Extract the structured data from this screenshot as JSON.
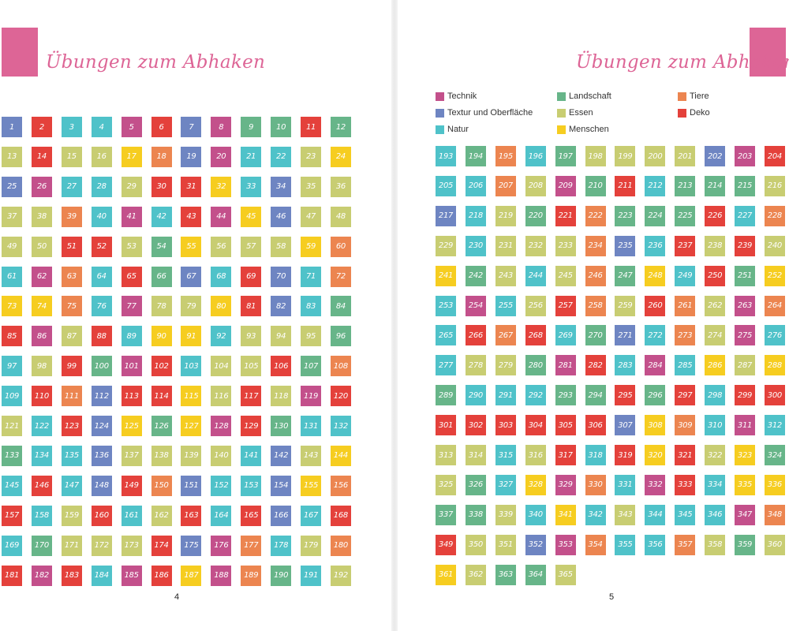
{
  "colors": {
    "Technik": "#c3508b",
    "Textur": "#6e85c2",
    "Natur": "#4fc2c9",
    "Landschaft": "#67b589",
    "Essen": "#c8cd72",
    "Menschen": "#f6cd20",
    "Tiere": "#ec8550",
    "Deko": "#e4413b",
    "accent": "#dd6596"
  },
  "left_page": {
    "title": "Übungen zum Abhaken",
    "page_number": "4"
  },
  "right_page": {
    "title": "Übungen zum Abhaken",
    "page_number": "5",
    "legend": [
      {
        "label": "Technik",
        "color_key": "Technik"
      },
      {
        "label": "Textur und Oberfläche",
        "color_key": "Textur"
      },
      {
        "label": "Natur",
        "color_key": "Natur"
      },
      {
        "label": "Landschaft",
        "color_key": "Landschaft"
      },
      {
        "label": "Essen",
        "color_key": "Essen"
      },
      {
        "label": "Menschen",
        "color_key": "Menschen"
      },
      {
        "label": "Tiere",
        "color_key": "Tiere"
      },
      {
        "label": "Deko",
        "color_key": "Deko"
      }
    ]
  },
  "number_colors": "TDNNTDTTLLDLEDEEMTTTNNEMTTNNEDDMNTEEEETNTNDTMTEEEEDDELMEEEMTNTTNDLTNDTNTMMTNTEEMDTNLDTEDNMMNEEELNEDLTDNEEDLTNDTTDDMEDETDENDTMLMTDLNNLNNTEEEENTEMNDNTDTTNNTMTDNEDNEDNDTNDNLEEEDTTTNETDTDNTDMTTLNENLTNLEEEETTDNNTETLDNLLLETNELDTLLLDNTENEEETTNDEDEMLENETLMNDLMNTNEDTEDTETTNDTDNLTNTETNNEELTDNTNMEMLNNNLLDLDNDDDDDDDDTMTNTNEENEDNDMDEMLELNMTTNTDNMMLLENMNENNNTTDEETTTNNTELEMELLELDEEEDTDNTTDNLEEMNNTMDNLEEEEEDMLMETLLNTTLLMMLDDLTDDTTDNTETTNTENNMMLNMNTMNDNMMDTMTMNTNNNNDTENDLTLDEETMLDETLTLNMLMDMNNTMTNTTTNNLNNNETENTTNEEEMTENNNNNTENNTMLNDETNNTEDTEEEMDNMEMNET"
}
